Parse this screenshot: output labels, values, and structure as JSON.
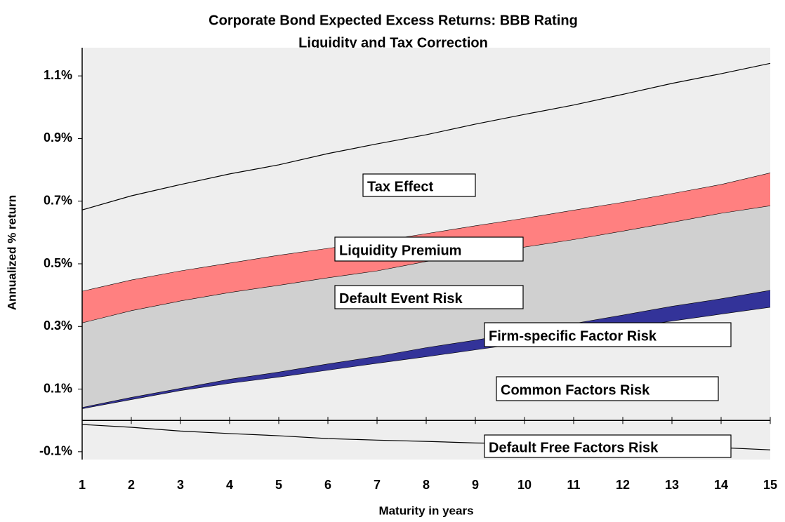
{
  "chart_data": {
    "type": "stacked_area",
    "title": "Corporate Bond Expected Excess Returns: BBB Rating",
    "subtitle": "Liquidity and Tax Correction",
    "x_label": "Maturity in years",
    "y_label": "Annualized % return",
    "x": [
      1,
      2,
      3,
      4,
      5,
      6,
      7,
      8,
      9,
      10,
      11,
      12,
      13,
      14,
      15
    ],
    "xlim": [
      1,
      15
    ],
    "xticks": [
      1,
      2,
      3,
      4,
      5,
      6,
      7,
      8,
      9,
      10,
      11,
      12,
      13,
      14,
      15
    ],
    "ylim": [
      -0.125,
      1.19
    ],
    "yticks": [
      {
        "value": -0.1,
        "label": "-0.1%"
      },
      {
        "value": 0.1,
        "label": "0.1%"
      },
      {
        "value": 0.3,
        "label": "0.3%"
      },
      {
        "value": 0.5,
        "label": "0.5%"
      },
      {
        "value": 0.7,
        "label": "0.7%"
      },
      {
        "value": 0.9,
        "label": "0.9%"
      },
      {
        "value": 1.1,
        "label": "1.1%"
      }
    ],
    "series": [
      {
        "name": "Default Free Factors Risk",
        "color": "#eeeeee",
        "values": [
          -0.013,
          -0.022,
          -0.034,
          -0.042,
          -0.049,
          -0.058,
          -0.063,
          -0.067,
          -0.072,
          -0.074,
          -0.078,
          -0.08,
          -0.085,
          -0.087,
          -0.094
        ]
      },
      {
        "name": "Common Factors Risk",
        "color": "#eeeeee",
        "values": [
          0.038,
          0.067,
          0.096,
          0.119,
          0.139,
          0.161,
          0.183,
          0.204,
          0.226,
          0.248,
          0.27,
          0.295,
          0.318,
          0.34,
          0.362
        ]
      },
      {
        "name": "Firm-specific Factor Risk",
        "color": "#333399",
        "values": [
          0.004,
          0.007,
          0.007,
          0.013,
          0.016,
          0.02,
          0.022,
          0.029,
          0.031,
          0.036,
          0.04,
          0.042,
          0.047,
          0.049,
          0.054
        ]
      },
      {
        "name": "Default Event Risk",
        "color": "#d0d0d0",
        "values": [
          0.27,
          0.277,
          0.279,
          0.277,
          0.277,
          0.275,
          0.273,
          0.275,
          0.273,
          0.27,
          0.268,
          0.268,
          0.268,
          0.273,
          0.27
        ]
      },
      {
        "name": "Liquidity Premium",
        "color": "#ff8080",
        "values": [
          0.101,
          0.098,
          0.096,
          0.094,
          0.096,
          0.094,
          0.094,
          0.089,
          0.092,
          0.092,
          0.094,
          0.092,
          0.092,
          0.092,
          0.105
        ]
      },
      {
        "name": "Tax Effect",
        "color": "#eeeeee",
        "values": [
          0.259,
          0.268,
          0.275,
          0.284,
          0.288,
          0.302,
          0.311,
          0.315,
          0.324,
          0.331,
          0.335,
          0.344,
          0.351,
          0.353,
          0.349
        ]
      }
    ]
  }
}
